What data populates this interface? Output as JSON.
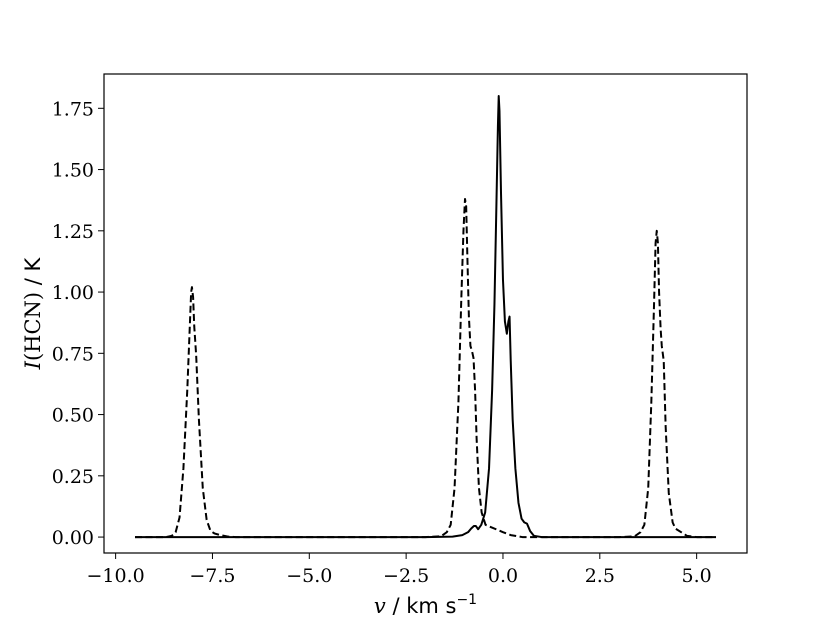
{
  "chart_data": {
    "type": "line",
    "xlabel": {
      "var": "v",
      "sep": " / ",
      "unit": "km s",
      "exp": "−1"
    },
    "ylabel": {
      "var": "I",
      "paren": "(HCN)",
      "sep": " / ",
      "unit": "K"
    },
    "xlim": [
      -10.3,
      6.3
    ],
    "ylim": [
      -0.065,
      1.89
    ],
    "x_ticks": [
      -10.0,
      -7.5,
      -5.0,
      -2.5,
      0.0,
      2.5,
      5.0
    ],
    "x_tick_labels": [
      "−10.0",
      "−7.5",
      "−5.0",
      "−2.5",
      "0.0",
      "2.5",
      "5.0"
    ],
    "y_ticks": [
      0.0,
      0.25,
      0.5,
      0.75,
      1.0,
      1.25,
      1.5,
      1.75
    ],
    "y_tick_labels": [
      "0.00",
      "0.25",
      "0.50",
      "0.75",
      "1.00",
      "1.25",
      "1.50",
      "1.75"
    ],
    "grid": false,
    "series": [
      {
        "style": "solid",
        "color": "#000000",
        "points": [
          [
            -9.5,
            0.0
          ],
          [
            -5.0,
            0.0
          ],
          [
            -2.0,
            0.0
          ],
          [
            -1.3,
            0.002
          ],
          [
            -1.05,
            0.008
          ],
          [
            -0.9,
            0.02
          ],
          [
            -0.82,
            0.035
          ],
          [
            -0.75,
            0.045
          ],
          [
            -0.7,
            0.045
          ],
          [
            -0.64,
            0.032
          ],
          [
            -0.56,
            0.05
          ],
          [
            -0.46,
            0.1
          ],
          [
            -0.36,
            0.28
          ],
          [
            -0.28,
            0.6
          ],
          [
            -0.22,
            0.95
          ],
          [
            -0.17,
            1.35
          ],
          [
            -0.13,
            1.68
          ],
          [
            -0.11,
            1.8
          ],
          [
            -0.09,
            1.74
          ],
          [
            -0.05,
            1.4
          ],
          [
            0.0,
            1.05
          ],
          [
            0.05,
            0.88
          ],
          [
            0.1,
            0.83
          ],
          [
            0.14,
            0.88
          ],
          [
            0.17,
            0.9
          ],
          [
            0.2,
            0.72
          ],
          [
            0.25,
            0.48
          ],
          [
            0.32,
            0.28
          ],
          [
            0.4,
            0.14
          ],
          [
            0.48,
            0.075
          ],
          [
            0.55,
            0.06
          ],
          [
            0.62,
            0.055
          ],
          [
            0.7,
            0.025
          ],
          [
            0.8,
            0.005
          ],
          [
            1.0,
            0.0
          ],
          [
            2.5,
            0.0
          ],
          [
            5.5,
            0.0
          ]
        ]
      },
      {
        "style": "dashed",
        "color": "#000000",
        "points": [
          [
            -9.5,
            0.0
          ],
          [
            -8.7,
            0.0
          ],
          [
            -8.55,
            0.005
          ],
          [
            -8.45,
            0.02
          ],
          [
            -8.35,
            0.08
          ],
          [
            -8.25,
            0.28
          ],
          [
            -8.15,
            0.6
          ],
          [
            -8.08,
            0.88
          ],
          [
            -8.05,
            1.0
          ],
          [
            -8.03,
            1.02
          ],
          [
            -8.0,
            0.98
          ],
          [
            -7.97,
            0.86
          ],
          [
            -7.92,
            0.74
          ],
          [
            -7.85,
            0.48
          ],
          [
            -7.75,
            0.2
          ],
          [
            -7.65,
            0.07
          ],
          [
            -7.55,
            0.025
          ],
          [
            -7.45,
            0.015
          ],
          [
            -7.3,
            0.008
          ],
          [
            -7.1,
            0.002
          ],
          [
            -6.9,
            0.0
          ],
          [
            -4.0,
            0.0
          ],
          [
            -2.0,
            0.0
          ],
          [
            -1.6,
            0.003
          ],
          [
            -1.45,
            0.02
          ],
          [
            -1.35,
            0.05
          ],
          [
            -1.25,
            0.2
          ],
          [
            -1.15,
            0.55
          ],
          [
            -1.08,
            0.95
          ],
          [
            -1.02,
            1.25
          ],
          [
            -0.98,
            1.38
          ],
          [
            -0.95,
            1.35
          ],
          [
            -0.92,
            1.15
          ],
          [
            -0.88,
            0.9
          ],
          [
            -0.84,
            0.78
          ],
          [
            -0.8,
            0.76
          ],
          [
            -0.76,
            0.73
          ],
          [
            -0.72,
            0.6
          ],
          [
            -0.68,
            0.4
          ],
          [
            -0.62,
            0.2
          ],
          [
            -0.55,
            0.1
          ],
          [
            -0.45,
            0.05
          ],
          [
            -0.3,
            0.04
          ],
          [
            -0.15,
            0.03
          ],
          [
            0.0,
            0.02
          ],
          [
            0.2,
            0.008
          ],
          [
            0.5,
            0.0
          ],
          [
            3.0,
            0.0
          ],
          [
            3.4,
            0.003
          ],
          [
            3.55,
            0.02
          ],
          [
            3.65,
            0.05
          ],
          [
            3.75,
            0.2
          ],
          [
            3.83,
            0.55
          ],
          [
            3.9,
            0.95
          ],
          [
            3.94,
            1.2
          ],
          [
            3.97,
            1.25
          ],
          [
            4.0,
            1.2
          ],
          [
            4.03,
            1.0
          ],
          [
            4.07,
            0.85
          ],
          [
            4.1,
            0.78
          ],
          [
            4.15,
            0.72
          ],
          [
            4.2,
            0.45
          ],
          [
            4.28,
            0.18
          ],
          [
            4.38,
            0.06
          ],
          [
            4.45,
            0.035
          ],
          [
            4.6,
            0.02
          ],
          [
            4.75,
            0.005
          ],
          [
            5.0,
            0.0
          ],
          [
            5.5,
            0.0
          ]
        ]
      }
    ]
  }
}
